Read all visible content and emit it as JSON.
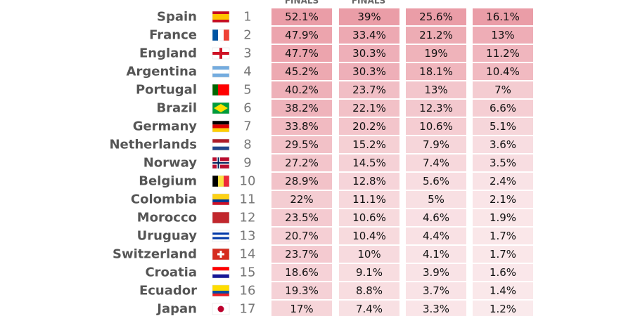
{
  "header": {
    "columns": [
      "FINALS",
      "FINALS"
    ]
  },
  "table": {
    "rows": [
      [
        "Spain",
        1,
        "52.1%",
        "39%",
        "25.6%",
        "16.1%"
      ],
      [
        "France",
        2,
        "47.9%",
        "33.4%",
        "21.2%",
        "13%"
      ],
      [
        "England",
        3,
        "47.7%",
        "30.3%",
        "19%",
        "11.2%"
      ],
      [
        "Argentina",
        4,
        "45.2%",
        "30.3%",
        "18.1%",
        "10.4%"
      ],
      [
        "Portugal",
        5,
        "40.2%",
        "23.7%",
        "13%",
        "7%"
      ],
      [
        "Brazil",
        6,
        "38.2%",
        "22.1%",
        "12.3%",
        "6.6%"
      ],
      [
        "Germany",
        7,
        "33.8%",
        "20.2%",
        "10.6%",
        "5.1%"
      ],
      [
        "Netherlands",
        8,
        "29.5%",
        "15.2%",
        "7.9%",
        "3.6%"
      ],
      [
        "Norway",
        9,
        "27.2%",
        "14.5%",
        "7.4%",
        "3.5%"
      ],
      [
        "Belgium",
        10,
        "28.9%",
        "12.8%",
        "5.6%",
        "2.4%"
      ],
      [
        "Colombia",
        11,
        "22%",
        "11.1%",
        "5%",
        "2.1%"
      ],
      [
        "Morocco",
        12,
        "23.5%",
        "10.6%",
        "4.6%",
        "1.9%"
      ],
      [
        "Uruguay",
        13,
        "20.7%",
        "10.4%",
        "4.4%",
        "1.7%"
      ],
      [
        "Switzerland",
        14,
        "23.7%",
        "10%",
        "4.1%",
        "1.7%"
      ],
      [
        "Croatia",
        15,
        "18.6%",
        "9.1%",
        "3.9%",
        "1.6%"
      ],
      [
        "Ecuador",
        16,
        "19.3%",
        "8.8%",
        "3.7%",
        "1.4%"
      ],
      [
        "Japan",
        17,
        "17%",
        "7.4%",
        "3.3%",
        "1.2%"
      ]
    ]
  }
}
